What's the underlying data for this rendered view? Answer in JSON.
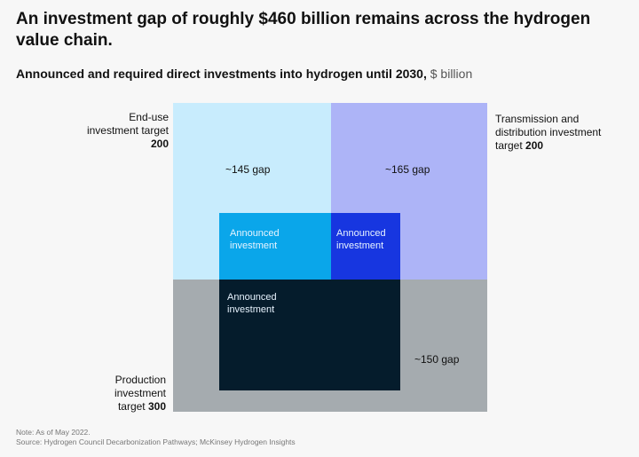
{
  "title": "An investment gap of roughly $460 billion remains across the hydrogen value chain.",
  "subtitle_bold": "Announced and required direct investments into hydrogen until 2030,",
  "subtitle_unit": "$ billion",
  "chart_data": {
    "type": "area",
    "segments": [
      {
        "name": "End-use",
        "label": "End-use investment target",
        "target": 200,
        "gap_label": "~145 gap",
        "gap": 145,
        "announced_label": "Announced investment",
        "color": "#c8ecfd",
        "announced_color": "#0aa6ea"
      },
      {
        "name": "Transmission and distribution",
        "label": "Transmission and distribution investment target",
        "target": 200,
        "gap_label": "~165 gap",
        "gap": 165,
        "announced_label": "Announced investment",
        "color": "#adb4f7",
        "announced_color": "#1736e0"
      },
      {
        "name": "Production",
        "label": "Production investment target",
        "target": 300,
        "gap_label": "~150 gap",
        "gap": 150,
        "announced_label": "Announced investment",
        "color": "#a5abaf",
        "announced_color": "#051c2c"
      }
    ]
  },
  "labels": {
    "enduse_text": "End-use investment target",
    "enduse_value": "200",
    "trans_text": "Transmission and distribution investment target",
    "trans_value": "200",
    "prod_text": "Production investment target",
    "prod_value": "300"
  },
  "note": "Note: As of May 2022.",
  "source": "Source: Hydrogen Council Decarbonization Pathways; McKinsey Hydrogen Insights"
}
